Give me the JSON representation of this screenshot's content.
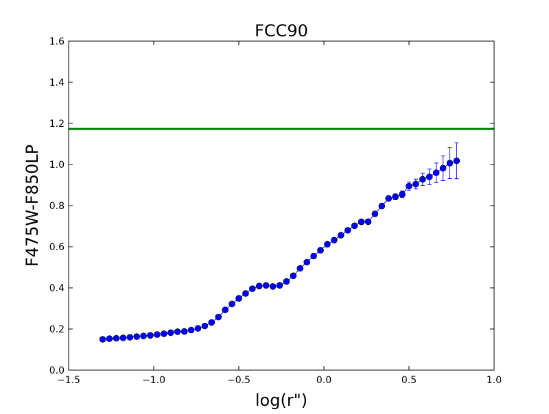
{
  "chart_data": {
    "type": "scatter",
    "title": "FCC90",
    "xlabel": "log(r\")",
    "ylabel": "F475W-F850LP",
    "xlim": [
      -1.5,
      1.0
    ],
    "ylim": [
      0.0,
      1.6
    ],
    "x_ticks": [
      -1.5,
      -1.0,
      -0.5,
      0.0,
      0.5,
      1.0
    ],
    "x_tick_labels": [
      "−1.5",
      "−1.0",
      "−0.5",
      "0.0",
      "0.5",
      "1.0"
    ],
    "y_ticks": [
      0.0,
      0.2,
      0.4,
      0.6,
      0.8,
      1.0,
      1.2,
      1.4,
      1.6
    ],
    "y_tick_labels": [
      "0.0",
      "0.2",
      "0.4",
      "0.6",
      "0.8",
      "1.0",
      "1.2",
      "1.4",
      "1.6"
    ],
    "grid": false,
    "series": [
      {
        "color": "#0000ff",
        "marker": "circle",
        "line": true,
        "points": [
          {
            "x": -1.3,
            "y": 0.15,
            "err": 0.003
          },
          {
            "x": -1.26,
            "y": 0.153,
            "err": 0.003
          },
          {
            "x": -1.22,
            "y": 0.155,
            "err": 0.003
          },
          {
            "x": -1.18,
            "y": 0.157,
            "err": 0.003
          },
          {
            "x": -1.14,
            "y": 0.16,
            "err": 0.003
          },
          {
            "x": -1.1,
            "y": 0.163,
            "err": 0.003
          },
          {
            "x": -1.06,
            "y": 0.166,
            "err": 0.003
          },
          {
            "x": -1.02,
            "y": 0.169,
            "err": 0.003
          },
          {
            "x": -0.98,
            "y": 0.173,
            "err": 0.003
          },
          {
            "x": -0.94,
            "y": 0.177,
            "err": 0.003
          },
          {
            "x": -0.9,
            "y": 0.182,
            "err": 0.003
          },
          {
            "x": -0.86,
            "y": 0.187,
            "err": 0.003
          },
          {
            "x": -0.82,
            "y": 0.188,
            "err": 0.003
          },
          {
            "x": -0.78,
            "y": 0.195,
            "err": 0.003
          },
          {
            "x": -0.74,
            "y": 0.203,
            "err": 0.003
          },
          {
            "x": -0.7,
            "y": 0.215,
            "err": 0.003
          },
          {
            "x": -0.66,
            "y": 0.232,
            "err": 0.003
          },
          {
            "x": -0.62,
            "y": 0.258,
            "err": 0.003
          },
          {
            "x": -0.58,
            "y": 0.293,
            "err": 0.003
          },
          {
            "x": -0.54,
            "y": 0.322,
            "err": 0.003
          },
          {
            "x": -0.5,
            "y": 0.349,
            "err": 0.003
          },
          {
            "x": -0.46,
            "y": 0.373,
            "err": 0.003
          },
          {
            "x": -0.42,
            "y": 0.396,
            "err": 0.003
          },
          {
            "x": -0.38,
            "y": 0.409,
            "err": 0.003
          },
          {
            "x": -0.34,
            "y": 0.412,
            "err": 0.003
          },
          {
            "x": -0.3,
            "y": 0.407,
            "err": 0.003
          },
          {
            "x": -0.26,
            "y": 0.412,
            "err": 0.003
          },
          {
            "x": -0.22,
            "y": 0.431,
            "err": 0.004
          },
          {
            "x": -0.18,
            "y": 0.459,
            "err": 0.004
          },
          {
            "x": -0.14,
            "y": 0.495,
            "err": 0.004
          },
          {
            "x": -0.1,
            "y": 0.525,
            "err": 0.004
          },
          {
            "x": -0.06,
            "y": 0.555,
            "err": 0.004
          },
          {
            "x": -0.02,
            "y": 0.583,
            "err": 0.004
          },
          {
            "x": 0.02,
            "y": 0.612,
            "err": 0.005
          },
          {
            "x": 0.06,
            "y": 0.632,
            "err": 0.005
          },
          {
            "x": 0.1,
            "y": 0.656,
            "err": 0.005
          },
          {
            "x": 0.14,
            "y": 0.68,
            "err": 0.006
          },
          {
            "x": 0.18,
            "y": 0.702,
            "err": 0.007
          },
          {
            "x": 0.22,
            "y": 0.721,
            "err": 0.008
          },
          {
            "x": 0.26,
            "y": 0.722,
            "err": 0.009
          },
          {
            "x": 0.3,
            "y": 0.76,
            "err": 0.01
          },
          {
            "x": 0.34,
            "y": 0.798,
            "err": 0.011
          },
          {
            "x": 0.38,
            "y": 0.835,
            "err": 0.012
          },
          {
            "x": 0.42,
            "y": 0.843,
            "err": 0.014
          },
          {
            "x": 0.46,
            "y": 0.855,
            "err": 0.016
          },
          {
            "x": 0.5,
            "y": 0.895,
            "err": 0.02
          },
          {
            "x": 0.54,
            "y": 0.905,
            "err": 0.024
          },
          {
            "x": 0.58,
            "y": 0.928,
            "err": 0.03
          },
          {
            "x": 0.62,
            "y": 0.94,
            "err": 0.038
          },
          {
            "x": 0.66,
            "y": 0.96,
            "err": 0.047
          },
          {
            "x": 0.7,
            "y": 0.982,
            "err": 0.06
          },
          {
            "x": 0.74,
            "y": 1.007,
            "err": 0.075
          },
          {
            "x": 0.78,
            "y": 1.018,
            "err": 0.087
          }
        ]
      }
    ],
    "reference_line": {
      "y": 1.173,
      "color": "#008000"
    },
    "frame_color": "#000000"
  }
}
